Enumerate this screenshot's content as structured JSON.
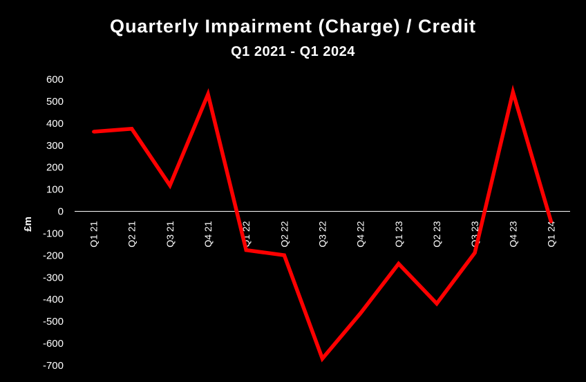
{
  "chart_data": {
    "type": "line",
    "title": "Quarterly Impairment (Charge) / Credit",
    "subtitle": "Q1 2021 - Q1 2024",
    "ylabel": "£m",
    "xlabel": "",
    "ylim": [
      -700,
      600
    ],
    "yticks": [
      600,
      500,
      400,
      300,
      200,
      100,
      0,
      -100,
      -200,
      -300,
      -400,
      -500,
      -600,
      -700
    ],
    "categories": [
      "Q1 21",
      "Q2 21",
      "Q3 21",
      "Q4 21",
      "Q1 22",
      "Q2 22",
      "Q3 22",
      "Q4 22",
      "Q1 23",
      "Q2 23",
      "Q3 23",
      "Q4 23",
      "Q1 24"
    ],
    "series": [
      {
        "values": [
          362,
          375,
          118,
          532,
          -176,
          -199,
          -669,
          -463,
          -238,
          -419,
          -188,
          542,
          -46
        ],
        "color": "#ff0000"
      }
    ],
    "grid": false,
    "legend": "none"
  }
}
